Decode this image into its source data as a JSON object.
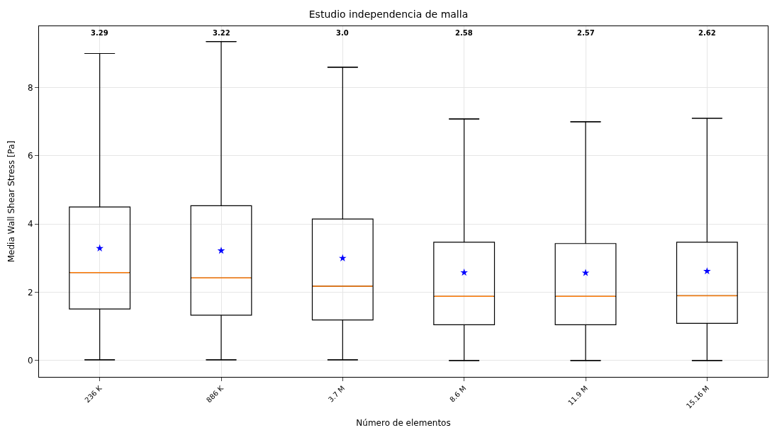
{
  "chart_data": {
    "type": "box",
    "title": "Estudio independencia de malla",
    "xlabel": "Número de elementos",
    "ylabel": "Media Wall Shear Stress [Pa]",
    "categories": [
      "236 K",
      "886 K",
      "3.7 M",
      "8.6 M",
      "11.9 M",
      "15.16 M"
    ],
    "boxes": [
      {
        "low": 0.02,
        "q1": 1.51,
        "median": 2.58,
        "q3": 4.5,
        "high": 9.0,
        "mean": 3.29
      },
      {
        "low": 0.02,
        "q1": 1.33,
        "median": 2.42,
        "q3": 4.54,
        "high": 9.35,
        "mean": 3.22
      },
      {
        "low": 0.02,
        "q1": 1.19,
        "median": 2.18,
        "q3": 4.15,
        "high": 8.6,
        "mean": 3.0
      },
      {
        "low": 0.0,
        "q1": 1.05,
        "median": 1.88,
        "q3": 3.47,
        "high": 7.08,
        "mean": 2.58
      },
      {
        "low": 0.0,
        "q1": 1.05,
        "median": 1.88,
        "q3": 3.43,
        "high": 7.0,
        "mean": 2.57
      },
      {
        "low": 0.0,
        "q1": 1.09,
        "median": 1.9,
        "q3": 3.47,
        "high": 7.1,
        "mean": 2.62
      }
    ],
    "annotations": [
      "3.29",
      "3.22",
      "3.0",
      "2.58",
      "2.57",
      "2.62"
    ],
    "color": "#000000",
    "marker": "star",
    "ylim": [
      -0.48,
      9.8
    ],
    "yticks": [
      0,
      2,
      4,
      6,
      8
    ],
    "grid": true
  }
}
